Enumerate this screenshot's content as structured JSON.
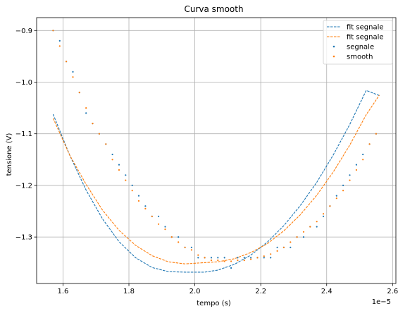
{
  "chart_data": {
    "type": "scatter",
    "title": "Curva smooth",
    "xlabel": "tempo (s)",
    "ylabel": "tensione (V)",
    "x_offset_label": "1e−5",
    "xlim": [
      1.52,
      2.61
    ],
    "ylim": [
      -1.39,
      -0.875
    ],
    "x_ticks": [
      1.6,
      1.8,
      2.0,
      2.2,
      2.4,
      2.6
    ],
    "x_tick_labels": [
      "1.6",
      "1.8",
      "2.0",
      "2.2",
      "2.4",
      "2.6"
    ],
    "y_ticks": [
      -0.9,
      -1.0,
      -1.1,
      -1.2,
      -1.3
    ],
    "y_tick_labels": [
      "−0.9",
      "−1.0",
      "−1.1",
      "−1.2",
      "−1.3"
    ],
    "grid": true,
    "legend_position": "top-right",
    "legend": [
      "fit segnale",
      "fit segnale",
      "segnale",
      "smooth"
    ],
    "series": [
      {
        "name": "fit segnale",
        "kind": "line",
        "style": "dashed",
        "color": "#1f77b4",
        "x": [
          1.57,
          1.62,
          1.67,
          1.72,
          1.77,
          1.82,
          1.87,
          1.92,
          1.97,
          2.0,
          2.03,
          2.07,
          2.12,
          2.17,
          2.22,
          2.27,
          2.32,
          2.37,
          2.42,
          2.47,
          2.52,
          2.56
        ],
        "y": [
          -1.062,
          -1.141,
          -1.209,
          -1.265,
          -1.309,
          -1.34,
          -1.359,
          -1.367,
          -1.368,
          -1.368,
          -1.368,
          -1.364,
          -1.353,
          -1.335,
          -1.31,
          -1.278,
          -1.239,
          -1.194,
          -1.141,
          -1.082,
          -1.016,
          -1.026
        ]
      },
      {
        "name": "fit segnale",
        "kind": "line",
        "style": "dashed",
        "color": "#ff7f0e",
        "x": [
          1.57,
          1.62,
          1.67,
          1.72,
          1.77,
          1.82,
          1.87,
          1.92,
          1.97,
          2.02,
          2.07,
          2.12,
          2.17,
          2.22,
          2.27,
          2.32,
          2.37,
          2.42,
          2.47,
          2.52,
          2.56
        ],
        "y": [
          -1.07,
          -1.141,
          -1.198,
          -1.248,
          -1.287,
          -1.316,
          -1.336,
          -1.348,
          -1.352,
          -1.35,
          -1.348,
          -1.342,
          -1.33,
          -1.313,
          -1.288,
          -1.257,
          -1.219,
          -1.174,
          -1.122,
          -1.063,
          -1.025
        ]
      },
      {
        "name": "segnale",
        "kind": "scatter",
        "color": "#1f77b4",
        "x": [
          1.57,
          1.59,
          1.61,
          1.63,
          1.65,
          1.67,
          1.69,
          1.71,
          1.73,
          1.75,
          1.77,
          1.79,
          1.81,
          1.83,
          1.85,
          1.87,
          1.89,
          1.91,
          1.93,
          1.95,
          1.97,
          1.99,
          2.01,
          2.03,
          2.05,
          2.07,
          2.09,
          2.11,
          2.13,
          2.15,
          2.17,
          2.19,
          2.21,
          2.23,
          2.25,
          2.27,
          2.29,
          2.31,
          2.33,
          2.35,
          2.37,
          2.39,
          2.41,
          2.43,
          2.45,
          2.47,
          2.49,
          2.51,
          2.53,
          2.55
        ],
        "y": [
          -0.9,
          -0.92,
          -0.96,
          -0.98,
          -1.02,
          -1.06,
          -1.08,
          -1.1,
          -1.12,
          -1.14,
          -1.16,
          -1.18,
          -1.2,
          -1.22,
          -1.24,
          -1.26,
          -1.26,
          -1.28,
          -1.3,
          -1.3,
          -1.32,
          -1.32,
          -1.34,
          -1.34,
          -1.34,
          -1.34,
          -1.34,
          -1.36,
          -1.34,
          -1.34,
          -1.34,
          -1.34,
          -1.34,
          -1.34,
          -1.32,
          -1.32,
          -1.32,
          -1.3,
          -1.3,
          -1.28,
          -1.28,
          -1.26,
          -1.24,
          -1.22,
          -1.2,
          -1.18,
          -1.16,
          -1.14,
          -1.12,
          -1.1
        ]
      },
      {
        "name": "smooth",
        "kind": "scatter",
        "color": "#ff7f0e",
        "x": [
          1.57,
          1.59,
          1.61,
          1.63,
          1.65,
          1.67,
          1.69,
          1.71,
          1.73,
          1.75,
          1.77,
          1.79,
          1.81,
          1.83,
          1.85,
          1.87,
          1.89,
          1.91,
          1.93,
          1.95,
          1.97,
          1.99,
          2.01,
          2.03,
          2.05,
          2.07,
          2.09,
          2.11,
          2.13,
          2.15,
          2.17,
          2.19,
          2.21,
          2.23,
          2.25,
          2.27,
          2.29,
          2.31,
          2.33,
          2.35,
          2.37,
          2.39,
          2.41,
          2.43,
          2.45,
          2.47,
          2.49,
          2.51,
          2.53,
          2.55
        ],
        "y": [
          -0.9,
          -0.93,
          -0.96,
          -0.99,
          -1.02,
          -1.05,
          -1.08,
          -1.1,
          -1.12,
          -1.15,
          -1.17,
          -1.19,
          -1.21,
          -1.23,
          -1.245,
          -1.26,
          -1.275,
          -1.285,
          -1.3,
          -1.31,
          -1.32,
          -1.325,
          -1.335,
          -1.34,
          -1.345,
          -1.345,
          -1.347,
          -1.347,
          -1.345,
          -1.345,
          -1.343,
          -1.34,
          -1.337,
          -1.333,
          -1.327,
          -1.32,
          -1.31,
          -1.3,
          -1.29,
          -1.28,
          -1.27,
          -1.255,
          -1.24,
          -1.225,
          -1.21,
          -1.19,
          -1.17,
          -1.15,
          -1.12,
          -1.1
        ]
      }
    ]
  }
}
